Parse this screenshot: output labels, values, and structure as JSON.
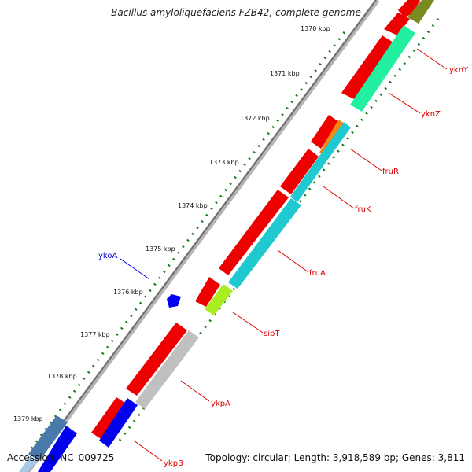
{
  "title": "Bacillus amyloliquefaciens FZB42, complete genome",
  "accession_text": "Accession: NC_009725",
  "summary_text": "Topology: circular; Length: 3,918,589 bp; Genes: 3,811",
  "colors": {
    "backbone": "#8a8a8a",
    "tick_dots": "#1a7a1a",
    "label_line_forward": "#e00000",
    "label_line_reverse": "#0000dd",
    "forward_gene": "#ee0000",
    "reverse_gene_blue": "#0000ee"
  },
  "ruler": {
    "unit": "kbp",
    "ticks": [
      "1370 kbp",
      "1371 kbp",
      "1372 kbp",
      "1373 kbp",
      "1374 kbp",
      "1375 kbp",
      "1376 kbp",
      "1377 kbp",
      "1378 kbp",
      "1379 kbp"
    ]
  },
  "labels": [
    {
      "text": "yknY",
      "color": "#dd0000"
    },
    {
      "text": "yknZ",
      "color": "#dd0000"
    },
    {
      "text": "fruR",
      "color": "#dd0000"
    },
    {
      "text": "fruK",
      "color": "#dd0000"
    },
    {
      "text": "fruA",
      "color": "#dd0000"
    },
    {
      "text": "sipT",
      "color": "#dd0000"
    },
    {
      "text": "ykpA",
      "color": "#dd0000"
    },
    {
      "text": "ykpB",
      "color": "#dd0000"
    },
    {
      "text": "ykoA",
      "color": "#0000dd"
    }
  ]
}
